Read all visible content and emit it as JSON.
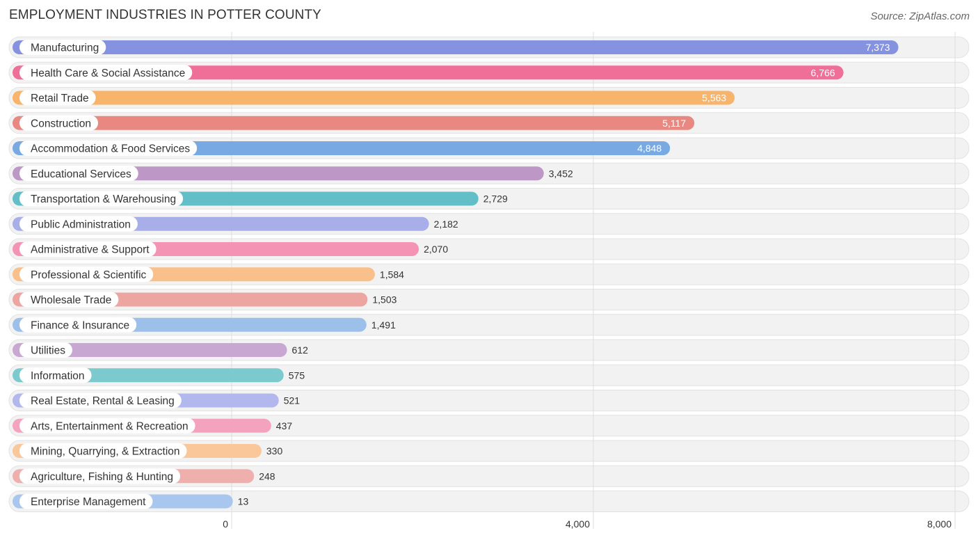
{
  "header": {
    "title": "EMPLOYMENT INDUSTRIES IN POTTER COUNTY",
    "source": "Source: ZipAtlas.com"
  },
  "chart_data": {
    "type": "bar",
    "orientation": "horizontal",
    "title": "EMPLOYMENT INDUSTRIES IN POTTER COUNTY",
    "xlabel": "",
    "ylabel": "",
    "xlim": [
      0,
      8000
    ],
    "xticks": [
      0,
      4000,
      8000
    ],
    "xtick_labels": [
      "0",
      "4,000",
      "8,000"
    ],
    "grid": true,
    "categories": [
      "Manufacturing",
      "Health Care & Social Assistance",
      "Retail Trade",
      "Construction",
      "Accommodation & Food Services",
      "Educational Services",
      "Transportation & Warehousing",
      "Public Administration",
      "Administrative & Support",
      "Professional & Scientific",
      "Wholesale Trade",
      "Finance & Insurance",
      "Utilities",
      "Information",
      "Real Estate, Rental & Leasing",
      "Arts, Entertainment & Recreation",
      "Mining, Quarrying, & Extraction",
      "Agriculture, Fishing & Hunting",
      "Enterprise Management"
    ],
    "values": [
      7373,
      6766,
      5563,
      5117,
      4848,
      3452,
      2729,
      2182,
      2070,
      1584,
      1503,
      1491,
      612,
      575,
      521,
      437,
      330,
      248,
      13
    ],
    "value_labels": [
      "7,373",
      "6,766",
      "5,563",
      "5,117",
      "4,848",
      "3,452",
      "2,729",
      "2,182",
      "2,070",
      "1,584",
      "1,503",
      "1,491",
      "612",
      "575",
      "521",
      "437",
      "330",
      "248",
      "13"
    ],
    "colors": [
      "#8592e0",
      "#f06f98",
      "#f9b46c",
      "#e88880",
      "#79a9e3",
      "#bd97c6",
      "#62bfc7",
      "#a8afe8",
      "#f593b5",
      "#f9c08b",
      "#eda5a2",
      "#9cc0ea",
      "#c8a7d2",
      "#7cc9ce",
      "#b2b8ed",
      "#f4a3bf",
      "#fac79b",
      "#efb0ad",
      "#a9c6ee"
    ]
  }
}
